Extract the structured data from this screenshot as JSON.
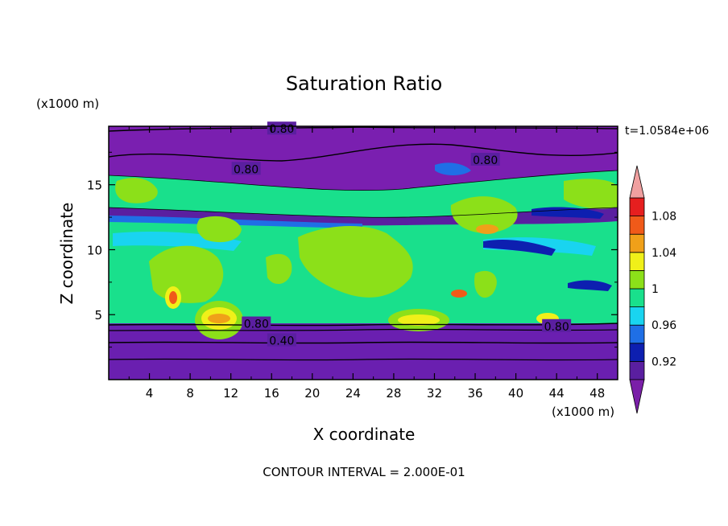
{
  "chart_data": {
    "type": "heatmap",
    "title": "Saturation Ratio",
    "xlabel": "X coordinate",
    "ylabel": "Z coordinate",
    "x_unit": "(x1000 m)",
    "y_unit": "(x1000 m)",
    "time_label": "t=1.0584e+06",
    "contour_interval_label": "CONTOUR INTERVAL = 2.000E-01",
    "xlim": [
      0,
      50
    ],
    "ylim": [
      0,
      19.5
    ],
    "x_ticks": [
      4,
      8,
      12,
      16,
      20,
      24,
      28,
      32,
      36,
      40,
      44,
      48
    ],
    "y_ticks": [
      5,
      10,
      15
    ],
    "contour_labels": [
      {
        "text": "0.80",
        "x": 17.0,
        "y": 19.3
      },
      {
        "text": "0.80",
        "x": 13.5,
        "y": 16.2
      },
      {
        "text": "0.80",
        "x": 37.0,
        "y": 16.9
      },
      {
        "text": "0.80",
        "x": 14.5,
        "y": 4.3
      },
      {
        "text": "0.80",
        "x": 44.0,
        "y": 4.1
      },
      {
        "text": "0.40",
        "x": 17.0,
        "y": 3.0
      }
    ],
    "colorbar": {
      "levels": [
        0.9,
        0.92,
        0.94,
        0.96,
        0.98,
        1.0,
        1.02,
        1.04,
        1.06,
        1.08,
        1.1
      ],
      "tick_labels": [
        "0.92",
        "0.96",
        "1",
        "1.04",
        "1.08"
      ],
      "tick_values": [
        0.92,
        0.96,
        1.0,
        1.04,
        1.08
      ],
      "colors": [
        "#5a1fa0",
        "#0d1fb0",
        "#1f6fe6",
        "#19d4f0",
        "#19e08c",
        "#8ce019",
        "#f0f019",
        "#f0a019",
        "#f05a19",
        "#e61f1f"
      ],
      "under_color": "#7a1fa8",
      "over_color": "#f0a0a0"
    }
  }
}
